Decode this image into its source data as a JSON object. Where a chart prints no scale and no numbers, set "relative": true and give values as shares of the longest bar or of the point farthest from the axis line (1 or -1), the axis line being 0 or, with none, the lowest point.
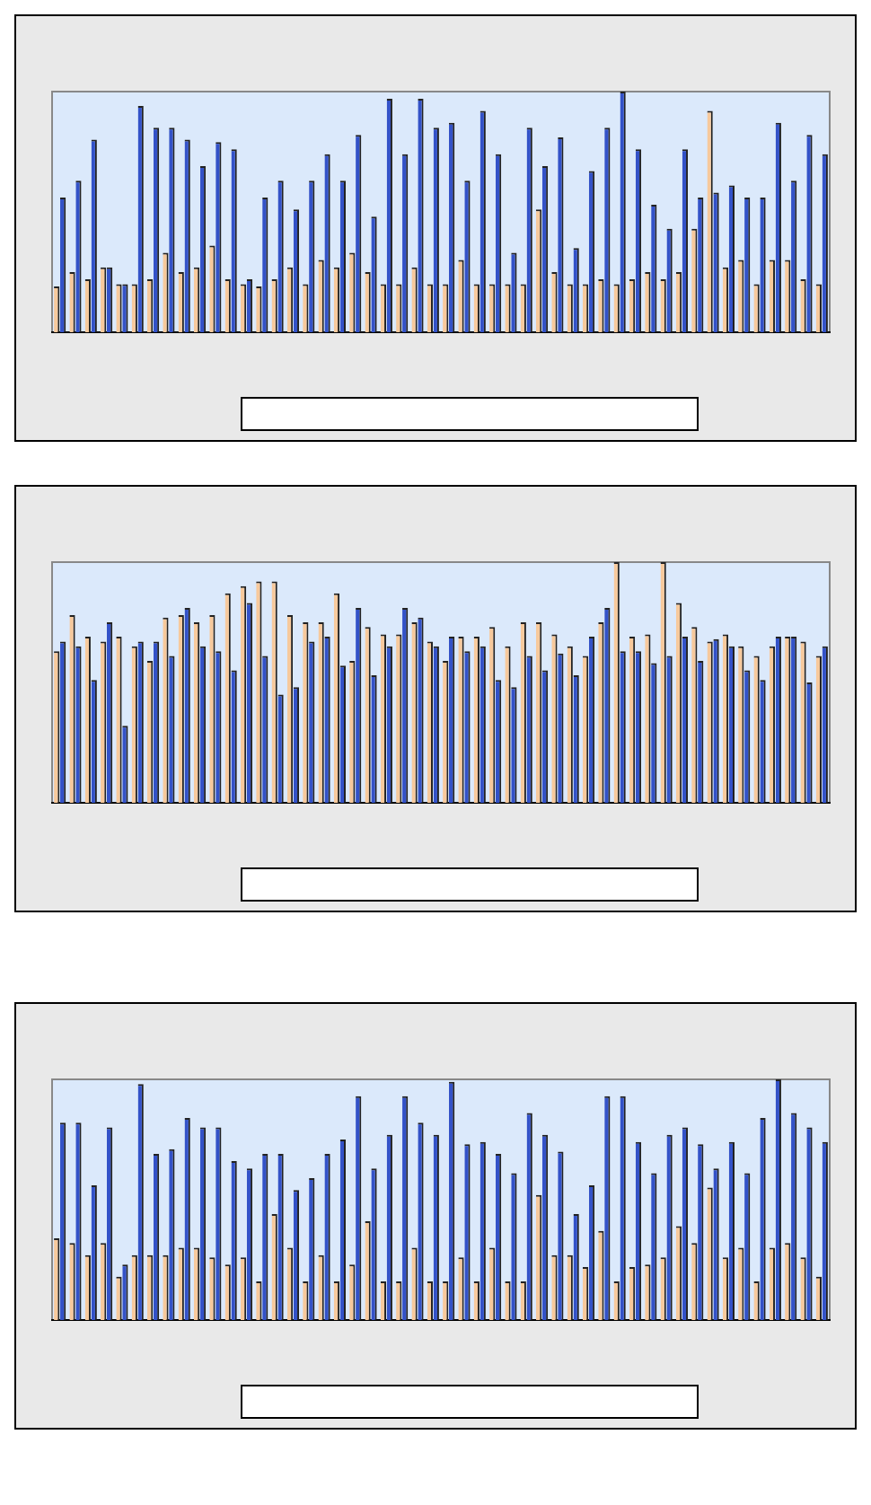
{
  "chart_data": [
    {
      "type": "bar",
      "relative": true,
      "categories": [
        null,
        null,
        null,
        null,
        null,
        null,
        null,
        null,
        null,
        null,
        null,
        null,
        null,
        null,
        null,
        null,
        null,
        null,
        null,
        null,
        null,
        null,
        null,
        null,
        null,
        null,
        null,
        null,
        null,
        null,
        null,
        null,
        null,
        null,
        null,
        null,
        null,
        null,
        null,
        null,
        null,
        null,
        null,
        null,
        null,
        null,
        null,
        null,
        null,
        null
      ],
      "series": [
        {
          "color": "#f7c99c",
          "values": [
            0.19,
            0.25,
            0.22,
            0.27,
            0.2,
            0.2,
            0.22,
            0.33,
            0.25,
            0.27,
            0.36,
            0.22,
            0.2,
            0.19,
            0.22,
            0.27,
            0.2,
            0.3,
            0.27,
            0.33,
            0.25,
            0.2,
            0.2,
            0.27,
            0.2,
            0.2,
            0.3,
            0.2,
            0.2,
            0.2,
            0.2,
            0.51,
            0.25,
            0.2,
            0.2,
            0.22,
            0.2,
            0.22,
            0.25,
            0.22,
            0.25,
            0.43,
            0.92,
            0.27,
            0.3,
            0.2,
            0.3,
            0.3,
            0.22,
            0.2
          ]
        },
        {
          "color": "#3352c8",
          "values": [
            0.56,
            0.63,
            0.8,
            0.27,
            0.2,
            0.94,
            0.85,
            0.85,
            0.8,
            0.69,
            0.79,
            0.76,
            0.22,
            0.56,
            0.63,
            0.51,
            0.63,
            0.74,
            0.63,
            0.82,
            0.48,
            0.97,
            0.74,
            0.97,
            0.85,
            0.87,
            0.63,
            0.92,
            0.74,
            0.33,
            0.85,
            0.69,
            0.81,
            0.35,
            0.67,
            0.85,
            1,
            0.76,
            0.53,
            0.43,
            0.76,
            0.56,
            0.58,
            0.61,
            0.56,
            0.56,
            0.87,
            0.63,
            0.82,
            0.74
          ]
        }
      ]
    },
    {
      "type": "bar",
      "relative": true,
      "categories": [
        null,
        null,
        null,
        null,
        null,
        null,
        null,
        null,
        null,
        null,
        null,
        null,
        null,
        null,
        null,
        null,
        null,
        null,
        null,
        null,
        null,
        null,
        null,
        null,
        null,
        null,
        null,
        null,
        null,
        null,
        null,
        null,
        null,
        null,
        null,
        null,
        null,
        null,
        null,
        null,
        null,
        null,
        null,
        null,
        null,
        null,
        null,
        null,
        null,
        null
      ],
      "series": [
        {
          "color": "#f7c99c",
          "values": [
            0.63,
            0.78,
            0.69,
            0.67,
            0.69,
            0.65,
            0.59,
            0.77,
            0.78,
            0.75,
            0.78,
            0.87,
            0.9,
            0.92,
            0.92,
            0.78,
            0.75,
            0.75,
            0.87,
            0.59,
            0.73,
            0.7,
            0.7,
            0.75,
            0.67,
            0.59,
            0.69,
            0.69,
            0.73,
            0.65,
            0.75,
            0.75,
            0.7,
            0.65,
            0.61,
            0.75,
            1,
            0.69,
            0.7,
            1,
            0.83,
            0.73,
            0.67,
            0.7,
            0.65,
            0.61,
            0.65,
            0.69,
            0.67,
            0.61
          ]
        },
        {
          "color": "#3352c8",
          "values": [
            0.67,
            0.65,
            0.51,
            0.75,
            0.32,
            0.67,
            0.67,
            0.61,
            0.81,
            0.65,
            0.63,
            0.55,
            0.83,
            0.61,
            0.45,
            0.48,
            0.67,
            0.69,
            0.57,
            0.81,
            0.53,
            0.65,
            0.81,
            0.77,
            0.65,
            0.69,
            0.63,
            0.65,
            0.51,
            0.48,
            0.61,
            0.55,
            0.62,
            0.53,
            0.69,
            0.81,
            0.63,
            0.63,
            0.58,
            0.61,
            0.69,
            0.59,
            0.68,
            0.65,
            0.55,
            0.51,
            0.69,
            0.69,
            0.5,
            0.65
          ]
        }
      ]
    },
    {
      "type": "bar",
      "relative": true,
      "categories": [
        null,
        null,
        null,
        null,
        null,
        null,
        null,
        null,
        null,
        null,
        null,
        null,
        null,
        null,
        null,
        null,
        null,
        null,
        null,
        null,
        null,
        null,
        null,
        null,
        null,
        null,
        null,
        null,
        null,
        null,
        null,
        null,
        null,
        null,
        null,
        null,
        null,
        null,
        null,
        null,
        null,
        null,
        null,
        null,
        null,
        null,
        null,
        null,
        null,
        null
      ],
      "series": [
        {
          "color": "#f7c99c",
          "values": [
            0.34,
            0.32,
            0.27,
            0.32,
            0.18,
            0.27,
            0.27,
            0.27,
            0.3,
            0.3,
            0.26,
            0.23,
            0.26,
            0.16,
            0.44,
            0.3,
            0.16,
            0.27,
            0.16,
            0.23,
            0.41,
            0.16,
            0.16,
            0.3,
            0.16,
            0.16,
            0.26,
            0.16,
            0.3,
            0.16,
            0.16,
            0.52,
            0.27,
            0.27,
            0.22,
            0.37,
            0.16,
            0.22,
            0.23,
            0.26,
            0.39,
            0.32,
            0.55,
            0.26,
            0.3,
            0.16,
            0.3,
            0.32,
            0.26,
            0.18
          ]
        },
        {
          "color": "#3352c8",
          "values": [
            0.82,
            0.82,
            0.56,
            0.8,
            0.23,
            0.98,
            0.69,
            0.71,
            0.84,
            0.8,
            0.8,
            0.66,
            0.63,
            0.69,
            0.69,
            0.54,
            0.59,
            0.69,
            0.75,
            0.93,
            0.63,
            0.77,
            0.93,
            0.82,
            0.77,
            0.99,
            0.73,
            0.74,
            0.69,
            0.61,
            0.86,
            0.77,
            0.7,
            0.44,
            0.56,
            0.93,
            0.93,
            0.74,
            0.61,
            0.77,
            0.8,
            0.73,
            0.63,
            0.74,
            0.61,
            0.84,
            1,
            0.86,
            0.8,
            0.74
          ]
        }
      ]
    }
  ]
}
